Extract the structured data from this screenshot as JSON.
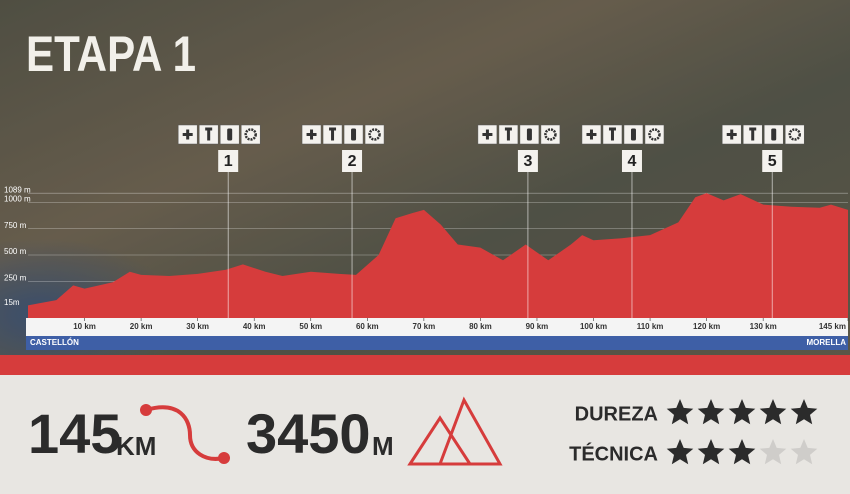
{
  "chart_data": {
    "type": "area",
    "title": "ETAPA 1",
    "color": "#d63c3c",
    "x": [
      0,
      2,
      5,
      8,
      10,
      15,
      18,
      20,
      25,
      30,
      35,
      38,
      42,
      45,
      50,
      55,
      58,
      62,
      65,
      68,
      70,
      73,
      76,
      80,
      84,
      88,
      92,
      96,
      98,
      100,
      105,
      110,
      115,
      118,
      120,
      123,
      126,
      130,
      135,
      140,
      142,
      145
    ],
    "values": [
      20,
      40,
      70,
      210,
      180,
      240,
      340,
      310,
      300,
      320,
      360,
      410,
      340,
      300,
      340,
      320,
      310,
      500,
      850,
      900,
      930,
      790,
      600,
      570,
      450,
      600,
      450,
      600,
      690,
      640,
      660,
      690,
      810,
      1050,
      1090,
      1020,
      1080,
      980,
      960,
      950,
      980,
      930
    ],
    "xlim": [
      0,
      145
    ],
    "ylim": [
      -100,
      1100
    ],
    "xticks": [
      {
        "value": 10,
        "label": "10 km"
      },
      {
        "value": 20,
        "label": "20 km"
      },
      {
        "value": 30,
        "label": "30 km"
      },
      {
        "value": 40,
        "label": "40 km"
      },
      {
        "value": 50,
        "label": "50 km"
      },
      {
        "value": 60,
        "label": "60 km"
      },
      {
        "value": 70,
        "label": "70 km"
      },
      {
        "value": 80,
        "label": "80 km"
      },
      {
        "value": 90,
        "label": "90 km"
      },
      {
        "value": 100,
        "label": "100 km"
      },
      {
        "value": 110,
        "label": "110 km"
      },
      {
        "value": 120,
        "label": "120 km"
      },
      {
        "value": 130,
        "label": "130 km"
      },
      {
        "value": 145,
        "label": "145 km"
      }
    ],
    "yticks": [
      {
        "value": 15,
        "label": "15m"
      },
      {
        "value": 250,
        "label": "250 m"
      },
      {
        "value": 500,
        "label": "500 m"
      },
      {
        "value": 750,
        "label": "750 m"
      },
      {
        "value": 1000,
        "label": "1000 m"
      },
      {
        "value": 1089,
        "label": "1089 m"
      }
    ],
    "start": "CASTELLÓN",
    "end": "MORELLA",
    "stations": [
      {
        "label": "1",
        "km": 35.4
      },
      {
        "label": "2",
        "km": 57.3
      },
      {
        "label": "3",
        "km": 88.4
      },
      {
        "label": "4",
        "km": 106.8
      },
      {
        "label": "5",
        "km": 131.6
      }
    ]
  },
  "stats": {
    "distance": "145",
    "distance_unit": "KM",
    "climb": "3450",
    "climb_unit": "M"
  },
  "ratings": [
    {
      "label": "DUREZA",
      "value": 5,
      "max": 5
    },
    {
      "label": "TÉCNICA",
      "value": 3,
      "max": 5
    }
  ]
}
